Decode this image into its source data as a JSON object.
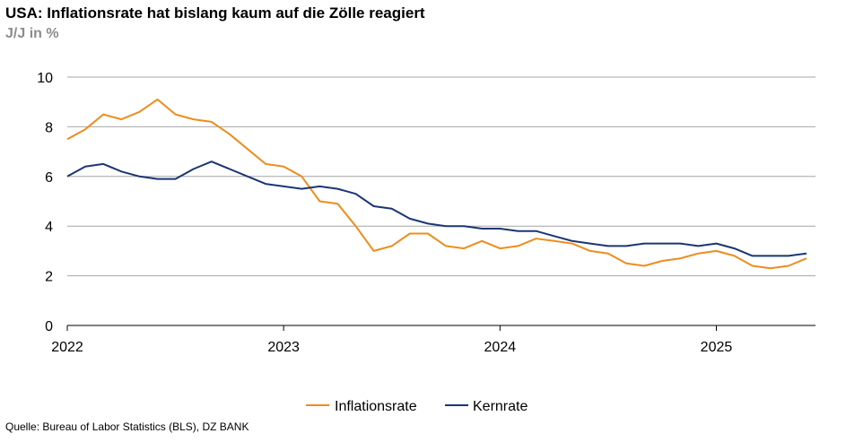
{
  "title": "USA: Inflationsrate hat bislang kaum auf die Zölle reagiert",
  "subtitle": "J/J in %",
  "source": "Quelle: Bureau of Labor Statistics (BLS), DZ BANK",
  "chart_data": {
    "type": "line",
    "title": "USA: Inflationsrate hat bislang kaum auf die Zölle reagiert",
    "subtitle": "J/J in %",
    "xlabel": "",
    "ylabel": "",
    "ylim": [
      0,
      10
    ],
    "yticks": [
      0,
      2,
      4,
      6,
      8,
      10
    ],
    "xticks": [
      "2022",
      "2023",
      "2024",
      "2025"
    ],
    "grid": true,
    "legend_position": "bottom",
    "x": [
      "2022-01",
      "2022-02",
      "2022-03",
      "2022-04",
      "2022-05",
      "2022-06",
      "2022-07",
      "2022-08",
      "2022-09",
      "2022-10",
      "2022-11",
      "2022-12",
      "2023-01",
      "2023-02",
      "2023-03",
      "2023-04",
      "2023-05",
      "2023-06",
      "2023-07",
      "2023-08",
      "2023-09",
      "2023-10",
      "2023-11",
      "2023-12",
      "2024-01",
      "2024-02",
      "2024-03",
      "2024-04",
      "2024-05",
      "2024-06",
      "2024-07",
      "2024-08",
      "2024-09",
      "2024-10",
      "2024-11",
      "2024-12",
      "2025-01",
      "2025-02",
      "2025-03",
      "2025-04",
      "2025-05",
      "2025-06"
    ],
    "series": [
      {
        "name": "Inflationsrate",
        "color": "#ec8d1e",
        "values": [
          7.5,
          7.9,
          8.5,
          8.3,
          8.6,
          9.1,
          8.5,
          8.3,
          8.2,
          7.7,
          7.1,
          6.5,
          6.4,
          6.0,
          5.0,
          4.9,
          4.0,
          3.0,
          3.2,
          3.7,
          3.7,
          3.2,
          3.1,
          3.4,
          3.1,
          3.2,
          3.5,
          3.4,
          3.3,
          3.0,
          2.9,
          2.5,
          2.4,
          2.6,
          2.7,
          2.9,
          3.0,
          2.8,
          2.4,
          2.3,
          2.4,
          2.7
        ]
      },
      {
        "name": "Kernrate",
        "color": "#1a3672",
        "values": [
          6.0,
          6.4,
          6.5,
          6.2,
          6.0,
          5.9,
          5.9,
          6.3,
          6.6,
          6.3,
          6.0,
          5.7,
          5.6,
          5.5,
          5.6,
          5.5,
          5.3,
          4.8,
          4.7,
          4.3,
          4.1,
          4.0,
          4.0,
          3.9,
          3.9,
          3.8,
          3.8,
          3.6,
          3.4,
          3.3,
          3.2,
          3.2,
          3.3,
          3.3,
          3.3,
          3.2,
          3.3,
          3.1,
          2.8,
          2.8,
          2.8,
          2.9
        ]
      }
    ]
  }
}
